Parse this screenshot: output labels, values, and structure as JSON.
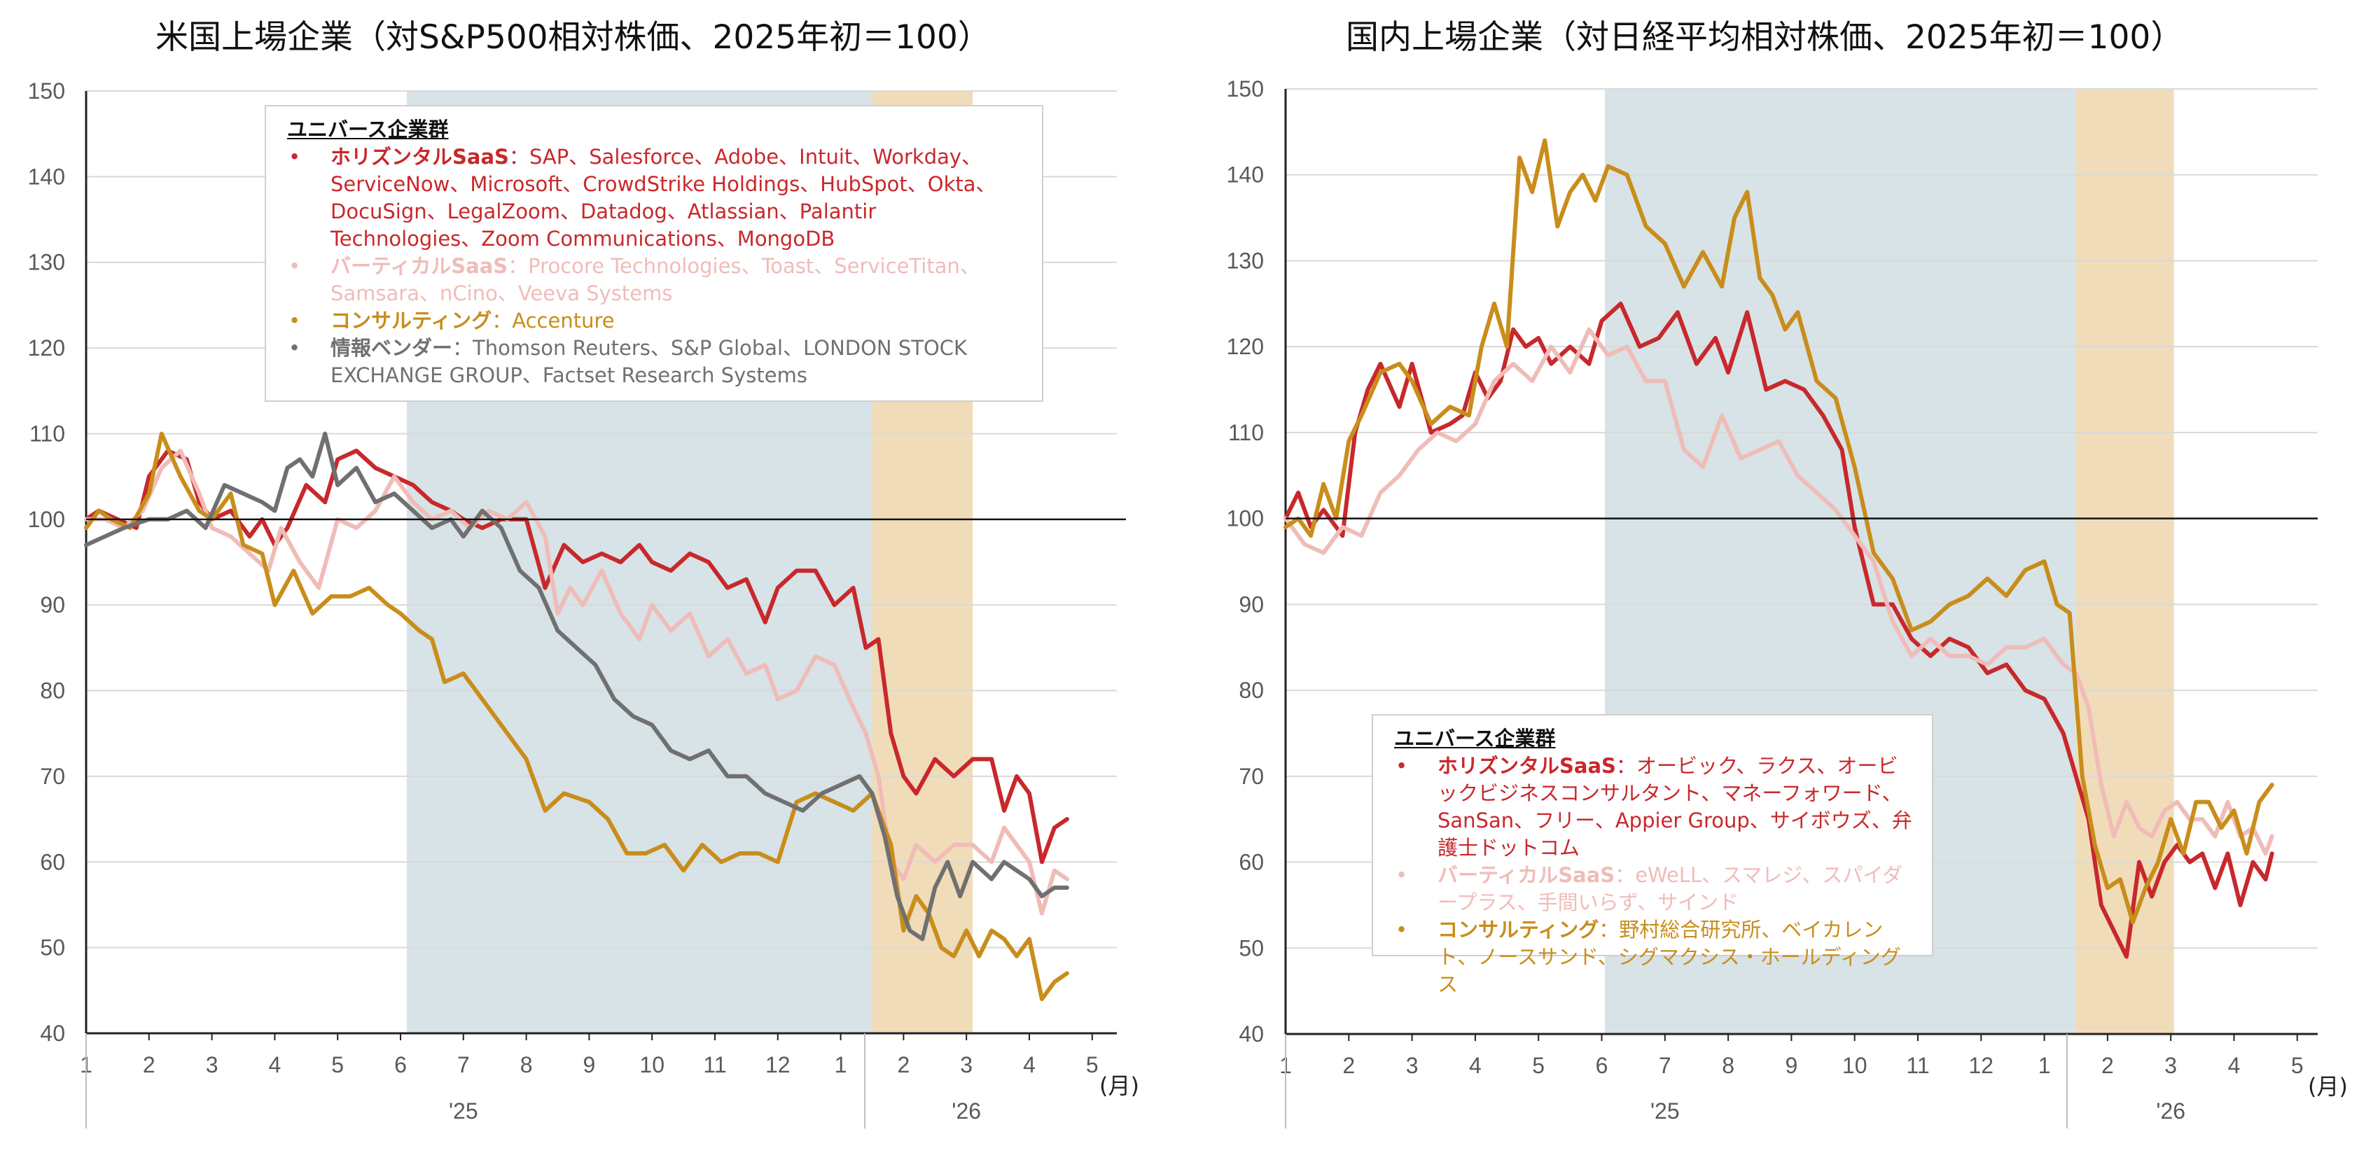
{
  "chart_data": [
    {
      "type": "line",
      "title": "米国上場企業（対S&P500相対株価、2025年初＝100）",
      "ylim": [
        40,
        150
      ],
      "yticks": [
        40,
        50,
        60,
        70,
        80,
        90,
        100,
        110,
        120,
        130,
        140,
        150
      ],
      "xlim": [
        1,
        17.1
      ],
      "xtick_values": [
        1,
        2,
        3,
        4,
        5,
        6,
        7,
        8,
        9,
        10,
        11,
        12,
        13,
        14,
        15,
        16,
        17
      ],
      "xtick_labels": [
        "1",
        "2",
        "3",
        "4",
        "5",
        "6",
        "7",
        "8",
        "9",
        "10",
        "11",
        "12",
        "1",
        "2",
        "3",
        "4",
        "5"
      ],
      "month_unit": "(月)",
      "year_labels": [
        {
          "label": "'25",
          "x": 7
        },
        {
          "label": "'26",
          "x": 15
        }
      ],
      "reference_line": 100,
      "shaded_regions": [
        {
          "from": 6.1,
          "to": 13.5,
          "color": "#d7e3e6"
        },
        {
          "from": 13.5,
          "to": 15.1,
          "color": "#f1dcb9"
        }
      ],
      "legend_title": "ユニバース企業群",
      "legend_items": [
        {
          "name": "ホリズンタルSaaS",
          "members": "SAP、Salesforce、Adobe、Intuit、Workday、ServiceNow、Microsoft、CrowdStrike Holdings、HubSpot、Okta、DocuSign、LegalZoom、Datadog、Atlassian、Palantir Technologies、Zoom Communications、MongoDB",
          "color": "#c8282c"
        },
        {
          "name": "バーティカルSaaS",
          "members": "Procore Technologies、Toast、ServiceTitan、Samsara、nCino、Veeva Systems",
          "color": "#f0bcb8"
        },
        {
          "name": "コンサルティング",
          "members": "Accenture",
          "color": "#c98d1b"
        },
        {
          "name": "情報ベンダー",
          "members": "Thomson Reuters、S&P Global、LONDON STOCK EXCHANGE GROUP、Factset Research Systems",
          "color": "#707070"
        }
      ],
      "series": [
        {
          "name": "ホリズンタルSaaS",
          "color": "#c8282c",
          "x": [
            1,
            1.2,
            1.5,
            1.8,
            2,
            2.3,
            2.6,
            2.8,
            3,
            3.3,
            3.6,
            3.8,
            4,
            4.2,
            4.5,
            4.8,
            5,
            5.3,
            5.6,
            5.9,
            6.2,
            6.5,
            6.8,
            7,
            7.3,
            7.6,
            8,
            8.3,
            8.6,
            8.9,
            9.2,
            9.5,
            9.8,
            10,
            10.3,
            10.6,
            10.9,
            11.2,
            11.5,
            11.8,
            12,
            12.3,
            12.6,
            12.9,
            13.2,
            13.4,
            13.6,
            13.8,
            14,
            14.2,
            14.5,
            14.8,
            15.1,
            15.4,
            15.6,
            15.8,
            16,
            16.2,
            16.4,
            16.6
          ],
          "values": [
            100,
            101,
            100,
            99,
            105,
            108,
            107,
            102,
            100,
            101,
            98,
            100,
            97,
            99,
            104,
            102,
            107,
            108,
            106,
            105,
            104,
            102,
            101,
            100,
            99,
            100,
            100,
            92,
            97,
            95,
            96,
            95,
            97,
            95,
            94,
            96,
            95,
            92,
            93,
            88,
            92,
            94,
            94,
            90,
            92,
            85,
            86,
            75,
            70,
            68,
            72,
            70,
            72,
            72,
            66,
            70,
            68,
            60,
            64,
            65
          ]
        },
        {
          "name": "バーティカルSaaS",
          "color": "#f0bcb8",
          "x": [
            1,
            1.3,
            1.6,
            1.9,
            2.2,
            2.5,
            2.8,
            3,
            3.3,
            3.6,
            3.9,
            4.1,
            4.4,
            4.7,
            5,
            5.3,
            5.6,
            5.9,
            6.2,
            6.5,
            6.8,
            7.1,
            7.4,
            7.7,
            8,
            8.3,
            8.5,
            8.7,
            8.9,
            9.2,
            9.5,
            9.8,
            10,
            10.3,
            10.6,
            10.9,
            11.2,
            11.5,
            11.8,
            12,
            12.3,
            12.6,
            12.9,
            13.2,
            13.4,
            13.6,
            13.8,
            14,
            14.2,
            14.5,
            14.8,
            15.1,
            15.4,
            15.6,
            15.8,
            16,
            16.2,
            16.4,
            16.6
          ],
          "values": [
            100,
            100,
            99,
            101,
            106,
            108,
            103,
            99,
            98,
            96,
            94,
            99,
            95,
            92,
            100,
            99,
            101,
            105,
            102,
            100,
            101,
            99,
            101,
            100,
            102,
            98,
            89,
            92,
            90,
            94,
            89,
            86,
            90,
            87,
            89,
            84,
            86,
            82,
            83,
            79,
            80,
            84,
            83,
            78,
            75,
            70,
            60,
            58,
            62,
            60,
            62,
            62,
            60,
            64,
            62,
            60,
            54,
            59,
            58
          ]
        },
        {
          "name": "コンサルティング",
          "color": "#c98d1b",
          "x": [
            1,
            1.2,
            1.4,
            1.7,
            2,
            2.2,
            2.5,
            2.8,
            3,
            3.3,
            3.5,
            3.8,
            4,
            4.3,
            4.6,
            4.9,
            5.2,
            5.5,
            5.8,
            6,
            6.3,
            6.5,
            6.7,
            7,
            7.3,
            7.6,
            8,
            8.3,
            8.6,
            9,
            9.3,
            9.6,
            9.9,
            10.2,
            10.5,
            10.8,
            11.1,
            11.4,
            11.7,
            12,
            12.3,
            12.6,
            12.9,
            13.2,
            13.5,
            13.8,
            14,
            14.2,
            14.4,
            14.6,
            14.8,
            15,
            15.2,
            15.4,
            15.6,
            15.8,
            16,
            16.2,
            16.4,
            16.6
          ],
          "values": [
            99,
            101,
            100,
            99,
            103,
            110,
            105,
            101,
            100,
            103,
            97,
            96,
            90,
            94,
            89,
            91,
            91,
            92,
            90,
            89,
            87,
            86,
            81,
            82,
            79,
            76,
            72,
            66,
            68,
            67,
            65,
            61,
            61,
            62,
            59,
            62,
            60,
            61,
            61,
            60,
            67,
            68,
            67,
            66,
            68,
            62,
            52,
            56,
            54,
            50,
            49,
            52,
            49,
            52,
            51,
            49,
            51,
            44,
            46,
            47
          ]
        },
        {
          "name": "情報ベンダー",
          "color": "#707070",
          "x": [
            1,
            1.3,
            1.6,
            2,
            2.3,
            2.6,
            2.9,
            3.2,
            3.5,
            3.8,
            4,
            4.2,
            4.4,
            4.6,
            4.8,
            5,
            5.3,
            5.6,
            5.9,
            6.2,
            6.5,
            6.8,
            7,
            7.3,
            7.6,
            7.9,
            8.2,
            8.5,
            8.8,
            9.1,
            9.4,
            9.7,
            10,
            10.3,
            10.6,
            10.9,
            11.2,
            11.5,
            11.8,
            12.1,
            12.4,
            12.7,
            13,
            13.3,
            13.5,
            13.7,
            13.9,
            14.1,
            14.3,
            14.5,
            14.7,
            14.9,
            15.1,
            15.4,
            15.6,
            15.8,
            16,
            16.2,
            16.4,
            16.6
          ],
          "values": [
            97,
            98,
            99,
            100,
            100,
            101,
            99,
            104,
            103,
            102,
            101,
            106,
            107,
            105,
            110,
            104,
            106,
            102,
            103,
            101,
            99,
            100,
            98,
            101,
            99,
            94,
            92,
            87,
            85,
            83,
            79,
            77,
            76,
            73,
            72,
            73,
            70,
            70,
            68,
            67,
            66,
            68,
            69,
            70,
            68,
            63,
            56,
            52,
            51,
            57,
            60,
            56,
            60,
            58,
            60,
            59,
            58,
            56,
            57,
            57
          ]
        }
      ]
    },
    {
      "type": "line",
      "title": "国内上場企業（対日経平均相対株価、2025年初＝100）",
      "ylim": [
        40,
        150
      ],
      "yticks": [
        40,
        50,
        60,
        70,
        80,
        90,
        100,
        110,
        120,
        130,
        140,
        150
      ],
      "xlim": [
        1,
        17.1
      ],
      "xtick_values": [
        1,
        2,
        3,
        4,
        5,
        6,
        7,
        8,
        9,
        10,
        11,
        12,
        13,
        14,
        15,
        16,
        17
      ],
      "xtick_labels": [
        "1",
        "2",
        "3",
        "4",
        "5",
        "6",
        "7",
        "8",
        "9",
        "10",
        "11",
        "12",
        "1",
        "2",
        "3",
        "4",
        "5"
      ],
      "month_unit": "(月)",
      "year_labels": [
        {
          "label": "'25",
          "x": 7
        },
        {
          "label": "'26",
          "x": 15
        }
      ],
      "reference_line": 100,
      "shaded_regions": [
        {
          "from": 6.05,
          "to": 13.5,
          "color": "#d7e3e6"
        },
        {
          "from": 13.5,
          "to": 15.05,
          "color": "#f1dcb9"
        }
      ],
      "legend_title": "ユニバース企業群",
      "legend_items": [
        {
          "name": "ホリズンタルSaaS",
          "members": "オービック、ラクス、オービックビジネスコンサルタント、マネーフォワード、SanSan、フリー、Appier Group、サイボウズ、弁護士ドットコム",
          "color": "#c8282c"
        },
        {
          "name": "バーティカルSaaS",
          "members": "eWeLL、スマレジ、スパイダープラス、手間いらず、サインド",
          "color": "#f0bcb8"
        },
        {
          "name": "コンサルティング",
          "members": "野村総合研究所、ベイカレント、ノースサンド、シグマクシス・ホールディングス",
          "color": "#c98d1b"
        }
      ],
      "series": [
        {
          "name": "ホリズンタルSaaS",
          "color": "#c8282c",
          "x": [
            1,
            1.2,
            1.4,
            1.6,
            1.9,
            2.1,
            2.3,
            2.5,
            2.8,
            3,
            3.3,
            3.6,
            3.8,
            4,
            4.2,
            4.4,
            4.6,
            4.8,
            5,
            5.2,
            5.5,
            5.8,
            6,
            6.3,
            6.6,
            6.9,
            7.2,
            7.5,
            7.8,
            8,
            8.3,
            8.6,
            8.9,
            9.2,
            9.5,
            9.8,
            10,
            10.3,
            10.6,
            10.9,
            11.2,
            11.5,
            11.8,
            12.1,
            12.4,
            12.7,
            13,
            13.3,
            13.5,
            13.7,
            13.9,
            14.1,
            14.3,
            14.5,
            14.7,
            14.9,
            15.1,
            15.3,
            15.5,
            15.7,
            15.9,
            16.1,
            16.3,
            16.5,
            16.6
          ],
          "values": [
            100,
            103,
            99,
            101,
            98,
            110,
            115,
            118,
            113,
            118,
            110,
            111,
            112,
            117,
            114,
            116,
            122,
            120,
            121,
            118,
            120,
            118,
            123,
            125,
            120,
            121,
            124,
            118,
            121,
            117,
            124,
            115,
            116,
            115,
            112,
            108,
            99,
            90,
            90,
            86,
            84,
            86,
            85,
            82,
            83,
            80,
            79,
            75,
            70,
            65,
            55,
            52,
            49,
            60,
            56,
            60,
            62,
            60,
            61,
            57,
            61,
            55,
            60,
            58,
            61
          ]
        },
        {
          "name": "バーティカルSaaS",
          "color": "#f0bcb8",
          "x": [
            1,
            1.3,
            1.6,
            1.9,
            2.2,
            2.5,
            2.8,
            3.1,
            3.4,
            3.7,
            4,
            4.3,
            4.6,
            4.9,
            5.2,
            5.5,
            5.8,
            6.1,
            6.4,
            6.7,
            7,
            7.3,
            7.6,
            7.9,
            8.2,
            8.5,
            8.8,
            9.1,
            9.4,
            9.7,
            10,
            10.3,
            10.6,
            10.9,
            11.2,
            11.5,
            11.8,
            12.1,
            12.4,
            12.7,
            13,
            13.3,
            13.5,
            13.7,
            13.9,
            14.1,
            14.3,
            14.5,
            14.7,
            14.9,
            15.1,
            15.3,
            15.5,
            15.7,
            15.9,
            16.1,
            16.3,
            16.5,
            16.6
          ],
          "values": [
            100,
            97,
            96,
            99,
            98,
            103,
            105,
            108,
            110,
            109,
            111,
            116,
            118,
            116,
            120,
            117,
            122,
            119,
            120,
            116,
            116,
            108,
            106,
            112,
            107,
            108,
            109,
            105,
            103,
            101,
            98,
            95,
            88,
            84,
            86,
            84,
            84,
            83,
            85,
            85,
            86,
            83,
            82,
            78,
            69,
            63,
            67,
            64,
            63,
            66,
            67,
            65,
            65,
            63,
            67,
            63,
            64,
            61,
            63
          ]
        },
        {
          "name": "コンサルティング",
          "color": "#c98d1b",
          "x": [
            1,
            1.2,
            1.4,
            1.6,
            1.8,
            2,
            2.2,
            2.5,
            2.8,
            3,
            3.3,
            3.6,
            3.9,
            4.1,
            4.3,
            4.5,
            4.7,
            4.9,
            5.1,
            5.3,
            5.5,
            5.7,
            5.9,
            6.1,
            6.4,
            6.7,
            7,
            7.3,
            7.6,
            7.9,
            8.1,
            8.3,
            8.5,
            8.7,
            8.9,
            9.1,
            9.4,
            9.7,
            10,
            10.3,
            10.6,
            10.9,
            11.2,
            11.5,
            11.8,
            12.1,
            12.4,
            12.7,
            13,
            13.2,
            13.4,
            13.6,
            13.8,
            14,
            14.2,
            14.4,
            14.6,
            14.8,
            15,
            15.2,
            15.4,
            15.6,
            15.8,
            16,
            16.2,
            16.4,
            16.6
          ],
          "values": [
            99,
            100,
            98,
            104,
            100,
            109,
            112,
            117,
            118,
            116,
            111,
            113,
            112,
            120,
            125,
            120,
            142,
            138,
            144,
            134,
            138,
            140,
            137,
            141,
            140,
            134,
            132,
            127,
            131,
            127,
            135,
            138,
            128,
            126,
            122,
            124,
            116,
            114,
            106,
            96,
            93,
            87,
            88,
            90,
            91,
            93,
            91,
            94,
            95,
            90,
            89,
            70,
            62,
            57,
            58,
            53,
            57,
            60,
            65,
            61,
            67,
            67,
            64,
            66,
            61,
            67,
            69
          ]
        }
      ]
    }
  ]
}
